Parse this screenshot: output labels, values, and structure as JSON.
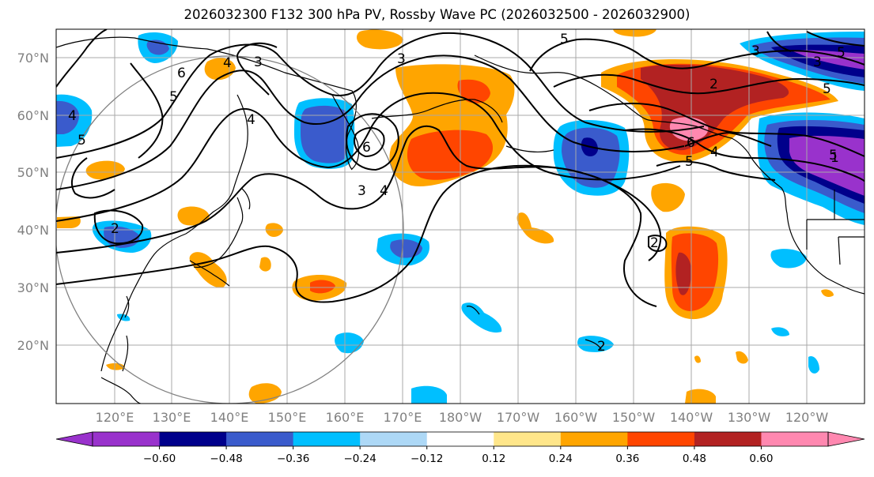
{
  "title": "2026032300 F132 300 hPa PV, Rossby Wave PC (2026032500 - 2026032900)",
  "map": {
    "lat_labels": [
      "70°N",
      "60°N",
      "50°N",
      "40°N",
      "30°N",
      "20°N"
    ],
    "lon_labels": [
      "120°E",
      "130°E",
      "140°E",
      "150°E",
      "160°E",
      "170°E",
      "180°W",
      "170°W",
      "160°W",
      "150°W",
      "140°W",
      "130°W",
      "120°W"
    ],
    "contour_labels": [
      "5",
      "6",
      "5",
      "4",
      "3",
      "2",
      "3",
      "4",
      "5",
      "6",
      "5",
      "4",
      "3",
      "3",
      "4",
      "5",
      "6",
      "2",
      "2",
      "2",
      "5",
      "4",
      "1",
      "3",
      "5"
    ]
  },
  "colorbar": {
    "ticks": [
      "−0.60",
      "−0.48",
      "−0.36",
      "−0.24",
      "−0.12",
      "0.12",
      "0.24",
      "0.36",
      "0.48",
      "0.60"
    ],
    "colors": {
      "under": "#9932cc",
      "bins": [
        "#9932cc",
        "#00008b",
        "#3a5bcc",
        "#00bfff",
        "#add8f6",
        "#ffffff",
        "#ffe68a",
        "#ffa500",
        "#ff4500",
        "#b22222",
        "#ff88b0"
      ],
      "over": "#ff88b0"
    }
  }
}
